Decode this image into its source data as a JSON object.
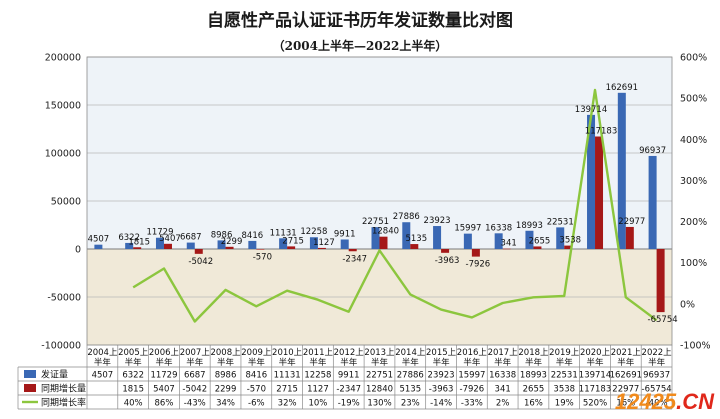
{
  "chart_data": {
    "type": "bar",
    "title": "自愿性产品认证证书历年发证数量比对图",
    "subtitle": "（2004上半年—2022上半年）",
    "categories": [
      "2004上半年",
      "2005上半年",
      "2006上半年",
      "2007上半年",
      "2008上半年",
      "2009上半年",
      "2010上半年",
      "2011上半年",
      "2012上半年",
      "2013上半年",
      "2014上半年",
      "2015上半年",
      "2016上半年",
      "2017上半年",
      "2018上半年",
      "2019上半年",
      "2020上半年",
      "2021上半年",
      "2022上半年"
    ],
    "series": [
      {
        "name": "发证量",
        "type": "bar",
        "axis": "left",
        "color": "#3a68b4",
        "values": [
          4507,
          6322,
          11729,
          6687,
          8986,
          8416,
          11131,
          12258,
          9911,
          22751,
          27886,
          23923,
          15997,
          16338,
          18993,
          22531,
          139714,
          162691,
          96937
        ]
      },
      {
        "name": "同期增长量",
        "type": "bar",
        "axis": "left",
        "color": "#a51818",
        "values": [
          null,
          1815,
          5407,
          -5042,
          2299,
          -570,
          2715,
          1127,
          -2347,
          12840,
          5135,
          -3963,
          -7926,
          341,
          2655,
          3538,
          117183,
          22977,
          -65754
        ]
      },
      {
        "name": "同期增长率",
        "type": "line",
        "axis": "right",
        "color": "#8cc63e",
        "values": [
          null,
          40,
          86,
          -43,
          34,
          -6,
          32,
          10,
          -19,
          130,
          23,
          -14,
          -33,
          2,
          16,
          19,
          520,
          16,
          -40
        ]
      }
    ],
    "bar_labels": {
      "issued": [
        "4507",
        "6322",
        "11729",
        "6687",
        "8986",
        "8416",
        "11131",
        "12258",
        "9911",
        "22751",
        "27886",
        "23923",
        "15997",
        "16338",
        "18993",
        "22531",
        "139714",
        "162691",
        "96937"
      ],
      "growth": [
        "",
        "1815",
        "5407",
        "-5042",
        "2299",
        "-570",
        "2715",
        "1127",
        "-2347",
        "12840",
        "5135",
        "-3963",
        "-7926",
        "341",
        "2655",
        "3538",
        "117183",
        "22977",
        "-65754"
      ]
    },
    "table": {
      "rows": [
        {
          "label": "发证量",
          "cells": [
            "4507",
            "6322",
            "11729",
            "6687",
            "8986",
            "8416",
            "11131",
            "12258",
            "9911",
            "22751",
            "27886",
            "23923",
            "15997",
            "16338",
            "18993",
            "22531",
            "139714",
            "162691",
            "96937"
          ]
        },
        {
          "label": "同期增长量",
          "cells": [
            "",
            "1815",
            "5407",
            "-5042",
            "2299",
            "-570",
            "2715",
            "1127",
            "-2347",
            "12840",
            "5135",
            "-3963",
            "-7926",
            "341",
            "2655",
            "3538",
            "117183",
            "22977",
            "-65754"
          ]
        },
        {
          "label": "同期增长率",
          "cells": [
            "",
            "40%",
            "86%",
            "-43%",
            "34%",
            "-6%",
            "32%",
            "10%",
            "-19%",
            "130%",
            "23%",
            "-14%",
            "-33%",
            "2%",
            "16%",
            "19%",
            "520%",
            "16%",
            "-40%"
          ]
        }
      ]
    },
    "y_left": {
      "min": -100000,
      "max": 200000,
      "ticks": [
        "-100000",
        "-50000",
        "0",
        "50000",
        "100000",
        "150000",
        "200000"
      ]
    },
    "y_right": {
      "min": -100,
      "max": 600,
      "ticks": [
        "-100%",
        "0%",
        "100%",
        "200%",
        "300%",
        "400%",
        "500%",
        "600%"
      ]
    },
    "grid": true,
    "legend": "table-left",
    "colors": {
      "positive_band": "#eef3f8",
      "negative_band": "#f0e9d8",
      "grid": "#b8b8b8"
    }
  },
  "watermark": {
    "prefix": "12425",
    "suffix": ".CN"
  }
}
